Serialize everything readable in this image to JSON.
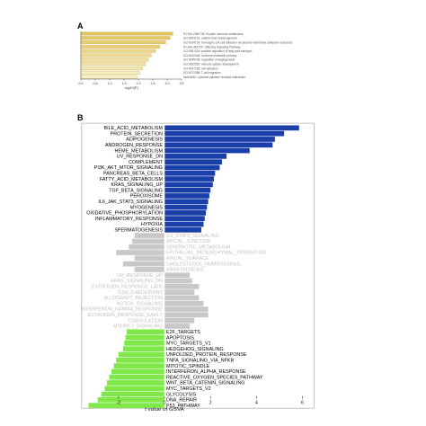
{
  "panel_a_label": "A",
  "panel_b_label": "B",
  "chart_data": [
    {
      "type": "bar",
      "orientation": "horizontal",
      "panel": "A",
      "xlabel": "-log10(P)",
      "xlim": [
        0,
        3.5
      ],
      "ticks": [
        "0.0",
        "0.5",
        "1.0",
        "1.5",
        "2.0",
        "2.5",
        "3.0",
        "3.5"
      ],
      "colors": {
        "low": "#f7f0c6",
        "high": "#e4c25e"
      },
      "terms": [
        "R-HSA-2980736: Peptide hormone metabolism",
        "GO:0003151: outflow tract morphogenesis",
        "GO:0034109: homotypic cell-cell adhesion via plasma-membrane adhesion molecules",
        "R-HSA-381753: Olfactory Signaling Pathway",
        "GO:0061024: positive regulation of fatty acid transport",
        "GO:0042446: hormone metabolic process",
        "GO:0045765: regulation of angiogenesis",
        "GO:0002520: immune system development",
        "GO:0007155: cell adhesion",
        "GO:0072358: T cell migration",
        "hsa04060: Cytokine-cytokine receptor interaction"
      ],
      "values": [
        3.2,
        3.1,
        2.95,
        2.75,
        2.6,
        2.45,
        2.35,
        2.25,
        2.15,
        2.05,
        1.95
      ]
    },
    {
      "type": "bar",
      "orientation": "horizontal",
      "panel": "B",
      "xlabel": "t value of GSVA",
      "xlim": [
        -3.6,
        6.5
      ],
      "ticks": [
        -2,
        0,
        2,
        4,
        6
      ],
      "colors": {
        "up": "#1a3fa8",
        "neutral": "#c8c8c8",
        "down": "#80e84a"
      },
      "categories": [
        "BILE_ACID_METABOLISM",
        "PROTEIN_SECRETION",
        "ADIPOGENESIS",
        "ANDROGEN_RESPONSE",
        "HEME_METABOLISM",
        "UV_RESPONSE_DN",
        "COMPLEMENT",
        "PI3K_AKT_MTOR_SIGNALING",
        "PANCREAS_BETA_CELLS",
        "FATTY_ACID_METABOLISM",
        "KRAS_SIGNALING_UP",
        "TGF_BETA_SIGNALING",
        "PEROXISOME",
        "IL6_JAK_STAT3_SIGNALING",
        "MYOGENESIS",
        "OXIDATIVE_PHOSPHORYLATION",
        "INFLAMMATORY_RESPONSE",
        "HYPOXIA",
        "SPERMATOGENESIS",
        "IL2_STAT5_SIGNALING",
        "APICAL_JUNCTION",
        "XENOBIOTIC_METABOLISM",
        "EPITHELIAL_MESENCHYMAL_TRANSITION",
        "APICAL_SURFACE",
        "CHOLESTEROL_HOMEOSTASIS",
        "ANGIOGENESIS",
        "UV_RESPONSE_UP",
        "KRAS_SIGNALING_DN",
        "ESTROGEN_RESPONSE_LATE",
        "G2M_CHECKPOINT",
        "ALLOGRAFT_REJECTION",
        "NOTCH_SIGNALING",
        "INTERFERON_GAMMA_RESPONSE",
        "ESTROGEN_RESPONSE_EARLY",
        "COAGULATION",
        "MTORC1_SIGNALING",
        "E2F_TARGETS",
        "APOPTOSIS",
        "MYC_TARGETS_V1",
        "HEDGEHOG_SIGNALING",
        "UNFOLDED_PROTEIN_RESPONSE",
        "TNFA_SIGNALING_VIA_NFKB",
        "MITOTIC_SPINDLE",
        "INTERFERON_ALPHA_RESPONSE",
        "REACTIVE_OXYGEN_SPECIES_PATHWAY",
        "WNT_BETA_CATENIN_SIGNALING",
        "MYC_TARGETS_V2",
        "GLYCOLYSIS",
        "DNA_REPAIR",
        "P53_PATHWAY"
      ],
      "values": [
        5.85,
        5.2,
        4.8,
        4.7,
        3.7,
        2.7,
        2.5,
        2.4,
        2.2,
        2.15,
        2.1,
        2.0,
        1.95,
        1.9,
        1.85,
        1.8,
        1.75,
        1.7,
        1.6,
        -1.3,
        -1.4,
        -1.55,
        -2.1,
        -1.3,
        -1.8,
        -1.3,
        1.1,
        1.2,
        1.5,
        1.3,
        1.5,
        1.7,
        1.9,
        1.9,
        1.3,
        1.1,
        -1.65,
        -1.7,
        -1.75,
        -1.8,
        -2.0,
        -2.1,
        -2.2,
        -2.3,
        -2.4,
        -2.5,
        -2.6,
        -2.75,
        -2.9,
        -3.3
      ],
      "groups": [
        "up",
        "up",
        "up",
        "up",
        "up",
        "up",
        "up",
        "up",
        "up",
        "up",
        "up",
        "up",
        "up",
        "up",
        "up",
        "up",
        "up",
        "up",
        "up",
        "neutral",
        "neutral",
        "neutral",
        "neutral",
        "neutral",
        "neutral",
        "neutral",
        "neutral",
        "neutral",
        "neutral",
        "neutral",
        "neutral",
        "neutral",
        "neutral",
        "neutral",
        "neutral",
        "neutral",
        "down",
        "down",
        "down",
        "down",
        "down",
        "down",
        "down",
        "down",
        "down",
        "down",
        "down",
        "down",
        "down",
        "down"
      ]
    }
  ]
}
